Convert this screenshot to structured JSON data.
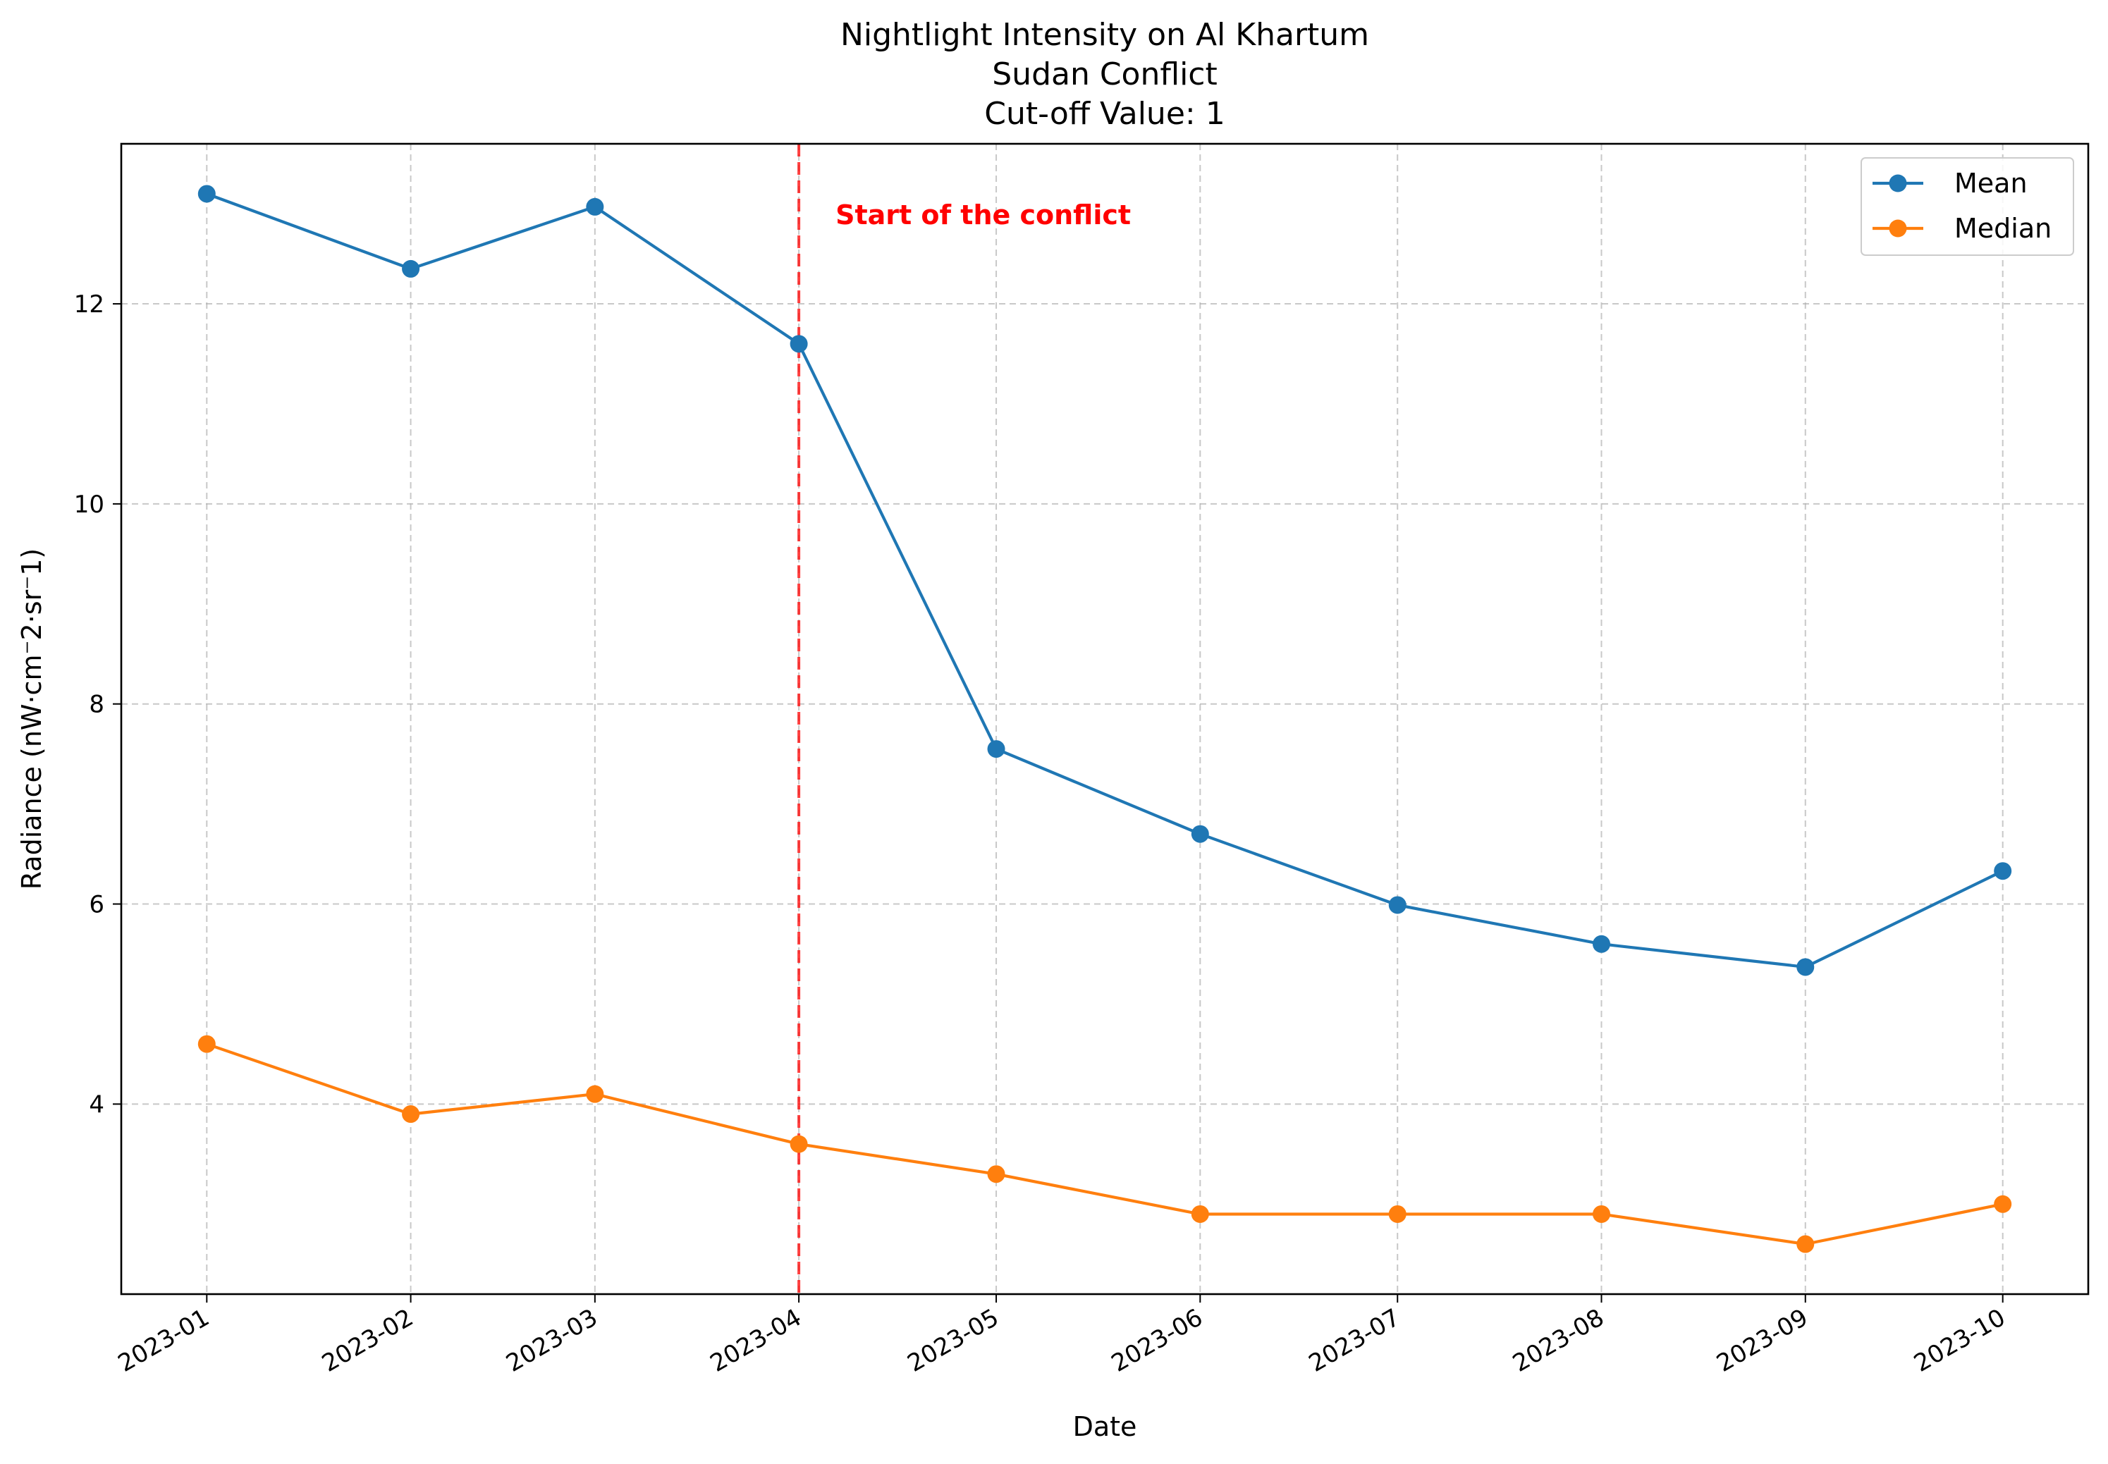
{
  "chart_data": {
    "type": "line",
    "title_lines": [
      "Nightlight Intensity on Al Khartum",
      "Sudan Conflict",
      "Cut-off Value: 1"
    ],
    "xlabel": "Date",
    "ylabel": "Radiance (nW·cm⁻2·sr⁻1)",
    "x": [
      "2023-01",
      "2023-02",
      "2023-03",
      "2023-04",
      "2023-05",
      "2023-06",
      "2023-07",
      "2023-08",
      "2023-09",
      "2023-10"
    ],
    "x_dates": [
      "2023-01-01",
      "2023-02-01",
      "2023-03-01",
      "2023-04-01",
      "2023-05-01",
      "2023-06-01",
      "2023-07-01",
      "2023-08-01",
      "2023-09-01",
      "2023-10-01"
    ],
    "x_range": [
      "2022-12-19",
      "2023-10-14"
    ],
    "ylim": [
      2.1,
      13.6
    ],
    "yticks": [
      4,
      6,
      8,
      10,
      12
    ],
    "grid": true,
    "legend_position": "top-right",
    "series": [
      {
        "name": "Mean",
        "color": "#1f77b4",
        "values": [
          13.1,
          12.35,
          12.97,
          11.6,
          7.55,
          6.7,
          5.99,
          5.6,
          5.37,
          6.33
        ]
      },
      {
        "name": "Median",
        "color": "#ff7f0e",
        "values": [
          4.6,
          3.9,
          4.1,
          3.6,
          3.3,
          2.9,
          2.9,
          2.9,
          2.6,
          3.0
        ]
      }
    ],
    "annotations": [
      {
        "type": "vline",
        "x": "2023-04-01",
        "color": "#ff0000",
        "style": "dashed",
        "label": "Start of the conflict"
      }
    ]
  }
}
